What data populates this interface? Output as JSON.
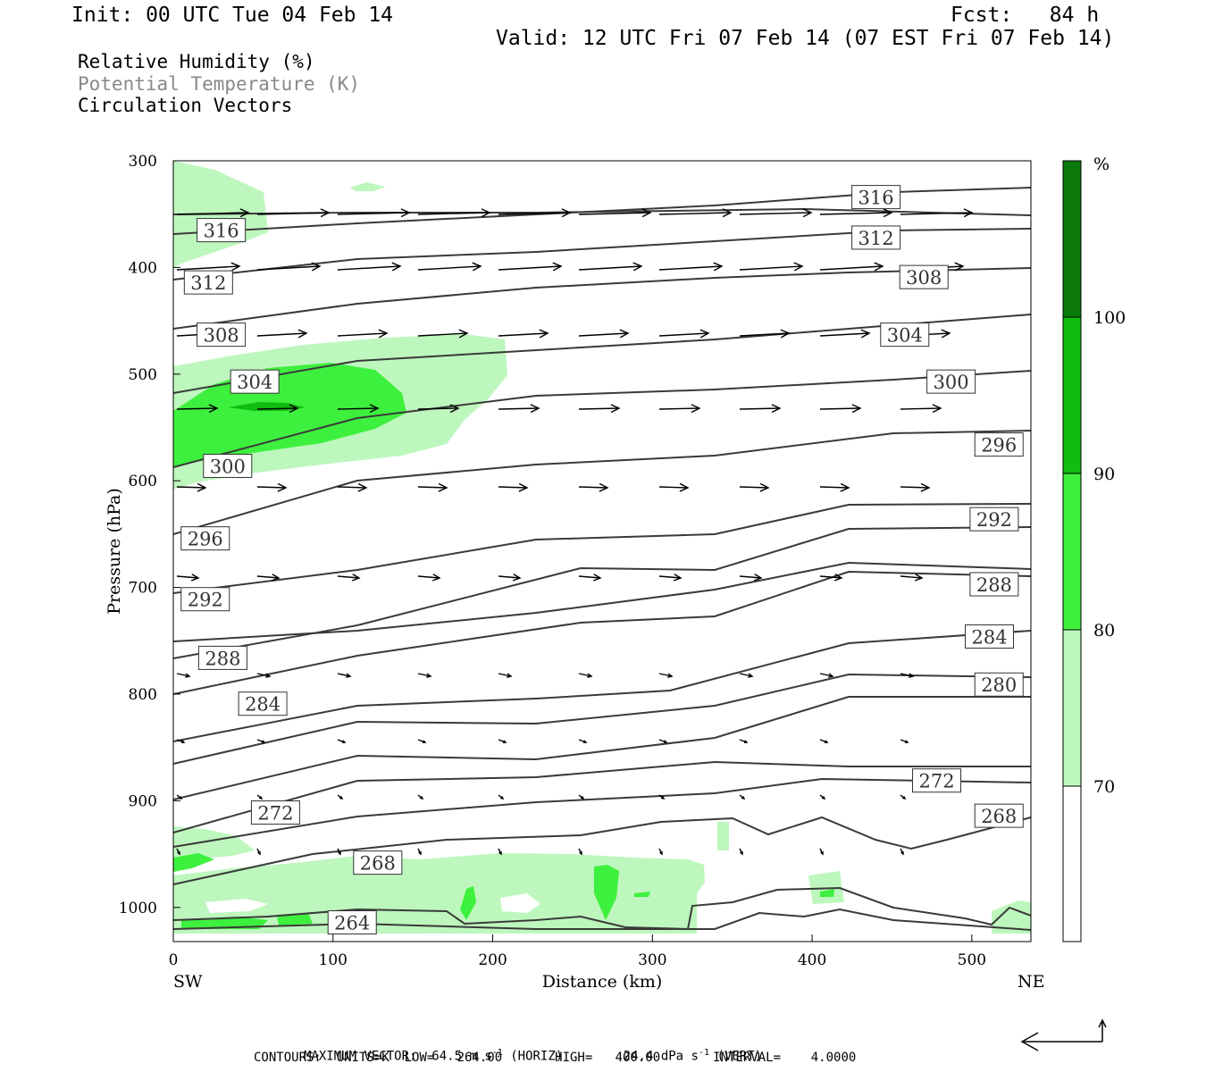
{
  "header": {
    "init": "Init: 00 UTC Tue 04 Feb 14",
    "fcst": "Fcst:   84 h",
    "valid": "Valid: 12 UTC Fri 07 Feb 14 (07 EST Fri 07 Feb 14)",
    "legend_lines": [
      "Relative Humidity (%)",
      "Potential Temperature (K)",
      "Circulation Vectors"
    ]
  },
  "colors": {
    "rh70": "#bdf7bd",
    "rh80": "#3ef03e",
    "rh90": "#10bc10",
    "rh100": "#0b7a0b",
    "contour": "#3a3a3a",
    "theta_legend_text": "#888888"
  },
  "chart_data": {
    "type": "cross-section",
    "xlabel": "Distance (km)",
    "ylabel": "Pressure (hPa)",
    "xlim": [
      0,
      537
    ],
    "ylim": [
      300,
      1032
    ],
    "y_scale": "linear, inverted",
    "x_ticks": [
      0,
      100,
      200,
      300,
      400,
      500
    ],
    "y_ticks": [
      300,
      400,
      500,
      600,
      700,
      800,
      900,
      1000
    ],
    "left_end_label": "SW",
    "right_end_label": "NE",
    "colorbar": {
      "unit": "%",
      "levels": [
        70,
        80,
        90,
        100
      ],
      "labels": [
        "70",
        "80",
        "90",
        "100"
      ]
    },
    "theta_contours_K": [
      264,
      268,
      272,
      276,
      280,
      284,
      288,
      292,
      296,
      300,
      304,
      308,
      312,
      316
    ],
    "theta_contour_labels": [
      {
        "text": "316",
        "x": 30,
        "p": 365
      },
      {
        "text": "316",
        "x": 440,
        "p": 334
      },
      {
        "text": "312",
        "x": 440,
        "p": 372
      },
      {
        "text": "312",
        "x": 22,
        "p": 414
      },
      {
        "text": "308",
        "x": 30,
        "p": 463
      },
      {
        "text": "308",
        "x": 470,
        "p": 409
      },
      {
        "text": "304",
        "x": 51,
        "p": 507
      },
      {
        "text": "304",
        "x": 458,
        "p": 463
      },
      {
        "text": "300",
        "x": 34,
        "p": 586
      },
      {
        "text": "300",
        "x": 487,
        "p": 507
      },
      {
        "text": "296",
        "x": 20,
        "p": 654
      },
      {
        "text": "296",
        "x": 517,
        "p": 566
      },
      {
        "text": "292",
        "x": 20,
        "p": 711
      },
      {
        "text": "292",
        "x": 514,
        "p": 636
      },
      {
        "text": "288",
        "x": 31,
        "p": 766
      },
      {
        "text": "288",
        "x": 514,
        "p": 697
      },
      {
        "text": "284",
        "x": 56,
        "p": 809
      },
      {
        "text": "284",
        "x": 511,
        "p": 746
      },
      {
        "text": "280",
        "x": 517,
        "p": 791
      },
      {
        "text": "272",
        "x": 64,
        "p": 911
      },
      {
        "text": "272",
        "x": 478,
        "p": 881
      },
      {
        "text": "268",
        "x": 517,
        "p": 914
      },
      {
        "text": "268",
        "x": 128,
        "p": 958
      },
      {
        "text": "264",
        "x": 112,
        "p": 1014
      }
    ],
    "footer": {
      "max_vector_label": "MAXIMUM VECTOR:",
      "horiz_value": "64.5 m s",
      "horiz_unit_sup": "-1",
      "horiz_tag": "(HORIZ)",
      "vert_value": "24.4 dPa s",
      "vert_unit_sup": "-1",
      "vert_tag": "(VERT)",
      "contours_line": "CONTOURS:  UNITS=K  LOW=   264.00       HIGH=   400.00       INTERVAL=    4.0000"
    }
  }
}
